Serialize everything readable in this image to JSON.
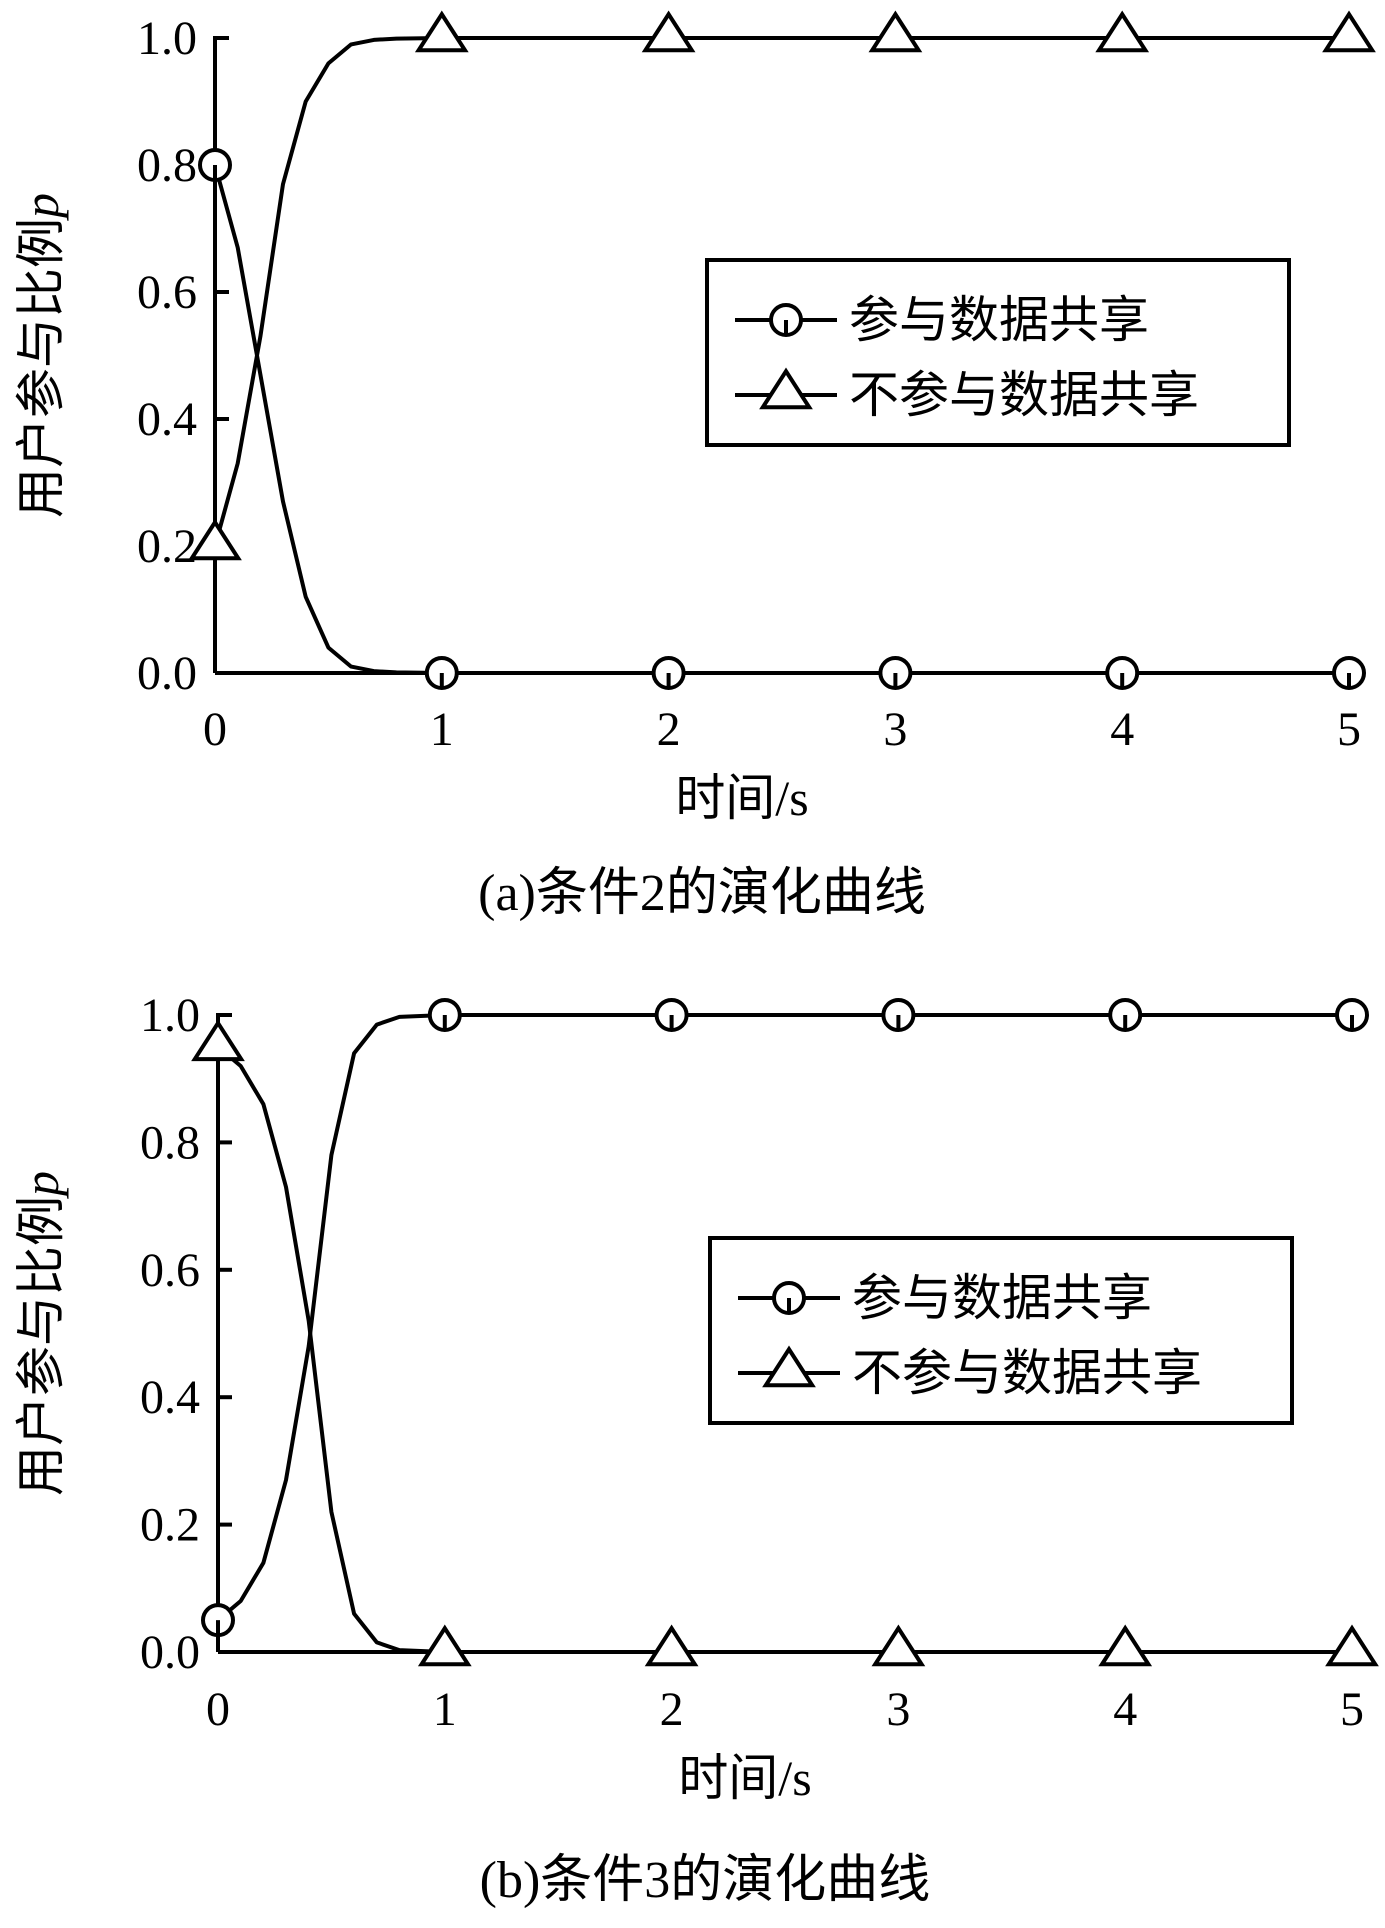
{
  "chart_data": [
    {
      "type": "line",
      "xlabel": "时间/s",
      "ylabel": "用户参与比例",
      "ylabel_var": "p",
      "caption": "(a)条件2的演化曲线",
      "xlim": [
        0,
        5
      ],
      "ylim": [
        0,
        1
      ],
      "xticks": [
        "0",
        "1",
        "2",
        "3",
        "4",
        "5"
      ],
      "yticks": [
        "0.0",
        "0.2",
        "0.4",
        "0.6",
        "0.8",
        "1.0"
      ],
      "legend_position": "center-right",
      "series": [
        {
          "name": "参与数据共享",
          "marker": "circle",
          "x": [
            0,
            0.1,
            0.2,
            0.3,
            0.4,
            0.5,
            0.6,
            0.7,
            0.8,
            1,
            2,
            3,
            4,
            5
          ],
          "y": [
            0.8,
            0.67,
            0.47,
            0.27,
            0.12,
            0.04,
            0.01,
            0.003,
            0.001,
            0,
            0,
            0,
            0,
            0
          ],
          "markers_x": [
            0,
            1,
            2,
            3,
            4,
            5
          ]
        },
        {
          "name": "不参与数据共享",
          "marker": "triangle",
          "x": [
            0,
            0.1,
            0.2,
            0.3,
            0.4,
            0.5,
            0.6,
            0.7,
            0.8,
            1,
            2,
            3,
            4,
            5
          ],
          "y": [
            0.2,
            0.33,
            0.53,
            0.77,
            0.9,
            0.96,
            0.99,
            0.997,
            0.999,
            1,
            1,
            1,
            1,
            1
          ],
          "markers_x": [
            0,
            1,
            2,
            3,
            4,
            5
          ]
        }
      ]
    },
    {
      "type": "line",
      "xlabel": "时间/s",
      "ylabel": "用户参与比例",
      "ylabel_var": "p",
      "caption": "(b)条件3的演化曲线",
      "xlim": [
        0,
        5
      ],
      "ylim": [
        0,
        1
      ],
      "xticks": [
        "0",
        "1",
        "2",
        "3",
        "4",
        "5"
      ],
      "yticks": [
        "0.0",
        "0.2",
        "0.4",
        "0.6",
        "0.8",
        "1.0"
      ],
      "legend_position": "center-right",
      "series": [
        {
          "name": "参与数据共享",
          "marker": "circle",
          "x": [
            0,
            0.1,
            0.2,
            0.3,
            0.4,
            0.5,
            0.6,
            0.7,
            0.8,
            1,
            2,
            3,
            4,
            5
          ],
          "y": [
            0.05,
            0.08,
            0.14,
            0.27,
            0.48,
            0.78,
            0.94,
            0.985,
            0.997,
            1,
            1,
            1,
            1,
            1
          ],
          "markers_x": [
            0,
            1,
            2,
            3,
            4,
            5
          ]
        },
        {
          "name": "不参与数据共享",
          "marker": "triangle",
          "x": [
            0,
            0.1,
            0.2,
            0.3,
            0.4,
            0.5,
            0.6,
            0.7,
            0.8,
            1,
            2,
            3,
            4,
            5
          ],
          "y": [
            0.95,
            0.92,
            0.86,
            0.73,
            0.52,
            0.22,
            0.06,
            0.015,
            0.003,
            0,
            0,
            0,
            0,
            0
          ],
          "markers_x": [
            0,
            1,
            2,
            3,
            4,
            5
          ]
        }
      ]
    }
  ]
}
